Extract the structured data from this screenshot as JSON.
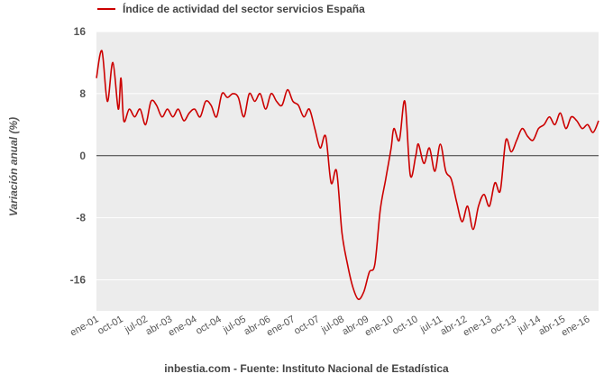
{
  "chart_data": {
    "type": "line",
    "series": [
      {
        "name": "Índice de actividad del sector servicios España",
        "color": "#cc0000",
        "points": [
          [
            "2001-01",
            10.0
          ],
          [
            "2001-03",
            13.5
          ],
          [
            "2001-05",
            7.0
          ],
          [
            "2001-07",
            12.0
          ],
          [
            "2001-09",
            6.0
          ],
          [
            "2001-10",
            10.0
          ],
          [
            "2001-11",
            4.5
          ],
          [
            "2002-01",
            6.0
          ],
          [
            "2002-03",
            5.0
          ],
          [
            "2002-05",
            6.0
          ],
          [
            "2002-07",
            4.0
          ],
          [
            "2002-09",
            7.0
          ],
          [
            "2002-11",
            6.5
          ],
          [
            "2003-01",
            5.0
          ],
          [
            "2003-03",
            6.0
          ],
          [
            "2003-05",
            5.0
          ],
          [
            "2003-07",
            6.0
          ],
          [
            "2003-09",
            4.5
          ],
          [
            "2003-11",
            5.5
          ],
          [
            "2004-01",
            6.0
          ],
          [
            "2004-03",
            5.0
          ],
          [
            "2004-05",
            7.0
          ],
          [
            "2004-07",
            6.5
          ],
          [
            "2004-09",
            5.0
          ],
          [
            "2004-11",
            8.0
          ],
          [
            "2005-01",
            7.5
          ],
          [
            "2005-03",
            8.0
          ],
          [
            "2005-05",
            7.5
          ],
          [
            "2005-07",
            5.0
          ],
          [
            "2005-09",
            8.0
          ],
          [
            "2005-11",
            7.0
          ],
          [
            "2006-01",
            8.0
          ],
          [
            "2006-03",
            6.0
          ],
          [
            "2006-05",
            8.0
          ],
          [
            "2006-07",
            7.0
          ],
          [
            "2006-09",
            6.5
          ],
          [
            "2006-11",
            8.5
          ],
          [
            "2007-01",
            7.0
          ],
          [
            "2007-03",
            6.5
          ],
          [
            "2007-05",
            5.0
          ],
          [
            "2007-07",
            6.0
          ],
          [
            "2007-09",
            3.5
          ],
          [
            "2007-11",
            1.0
          ],
          [
            "2008-01",
            2.5
          ],
          [
            "2008-03",
            -3.5
          ],
          [
            "2008-05",
            -2.0
          ],
          [
            "2008-07",
            -10.0
          ],
          [
            "2008-09",
            -14.0
          ],
          [
            "2008-11",
            -17.0
          ],
          [
            "2009-01",
            -18.5
          ],
          [
            "2009-03",
            -17.5
          ],
          [
            "2009-05",
            -15.0
          ],
          [
            "2009-07",
            -14.0
          ],
          [
            "2009-09",
            -7.0
          ],
          [
            "2009-11",
            -3.0
          ],
          [
            "2010-01",
            1.0
          ],
          [
            "2010-02",
            3.5
          ],
          [
            "2010-04",
            2.0
          ],
          [
            "2010-06",
            7.0
          ],
          [
            "2010-08",
            -2.5
          ],
          [
            "2010-10",
            0.0
          ],
          [
            "2010-11",
            1.5
          ],
          [
            "2011-01",
            -1.0
          ],
          [
            "2011-03",
            1.0
          ],
          [
            "2011-05",
            -2.0
          ],
          [
            "2011-07",
            1.5
          ],
          [
            "2011-09",
            -2.0
          ],
          [
            "2011-11",
            -3.0
          ],
          [
            "2012-01",
            -6.0
          ],
          [
            "2012-03",
            -8.5
          ],
          [
            "2012-05",
            -6.5
          ],
          [
            "2012-07",
            -9.5
          ],
          [
            "2012-09",
            -6.5
          ],
          [
            "2012-11",
            -5.0
          ],
          [
            "2013-01",
            -6.5
          ],
          [
            "2013-03",
            -3.5
          ],
          [
            "2013-05",
            -4.5
          ],
          [
            "2013-07",
            2.0
          ],
          [
            "2013-09",
            0.5
          ],
          [
            "2013-11",
            2.0
          ],
          [
            "2014-01",
            3.5
          ],
          [
            "2014-03",
            2.5
          ],
          [
            "2014-05",
            2.0
          ],
          [
            "2014-07",
            3.5
          ],
          [
            "2014-09",
            4.0
          ],
          [
            "2014-11",
            5.0
          ],
          [
            "2015-01",
            4.0
          ],
          [
            "2015-03",
            5.5
          ],
          [
            "2015-05",
            3.5
          ],
          [
            "2015-07",
            5.0
          ],
          [
            "2015-09",
            4.5
          ],
          [
            "2015-11",
            3.5
          ],
          [
            "2016-01",
            4.0
          ],
          [
            "2016-03",
            3.0
          ],
          [
            "2016-05",
            4.5
          ]
        ]
      }
    ],
    "yticks": [
      "16",
      "8",
      "0",
      "-8",
      "-16"
    ],
    "ylim": [
      -20,
      16
    ],
    "xlim": [
      "2001-01",
      "2016-05"
    ],
    "xticks": [
      {
        "label": "ene-01",
        "date": "2001-01"
      },
      {
        "label": "oct-01",
        "date": "2001-10"
      },
      {
        "label": "jul-02",
        "date": "2002-07"
      },
      {
        "label": "abr-03",
        "date": "2003-04"
      },
      {
        "label": "ene-04",
        "date": "2004-01"
      },
      {
        "label": "oct-04",
        "date": "2004-10"
      },
      {
        "label": "jul-05",
        "date": "2005-07"
      },
      {
        "label": "abr-06",
        "date": "2006-04"
      },
      {
        "label": "ene-07",
        "date": "2007-01"
      },
      {
        "label": "oct-07",
        "date": "2007-10"
      },
      {
        "label": "jul-08",
        "date": "2008-07"
      },
      {
        "label": "abr-09",
        "date": "2009-04"
      },
      {
        "label": "ene-10",
        "date": "2010-01"
      },
      {
        "label": "oct-10",
        "date": "2010-10"
      },
      {
        "label": "jul-11",
        "date": "2011-07"
      },
      {
        "label": "abr-12",
        "date": "2012-04"
      },
      {
        "label": "ene-13",
        "date": "2013-01"
      },
      {
        "label": "oct-13",
        "date": "2013-10"
      },
      {
        "label": "jul-14",
        "date": "2014-07"
      },
      {
        "label": "abr-15",
        "date": "2015-04"
      },
      {
        "label": "ene-16",
        "date": "2016-01"
      }
    ],
    "ylabel": "Variación anual (%)",
    "grid": true,
    "legend_position": "top-left",
    "plot_background": "#ececec",
    "source": "inbestia.com - Fuente: Instituto Nacional de Estadística"
  }
}
